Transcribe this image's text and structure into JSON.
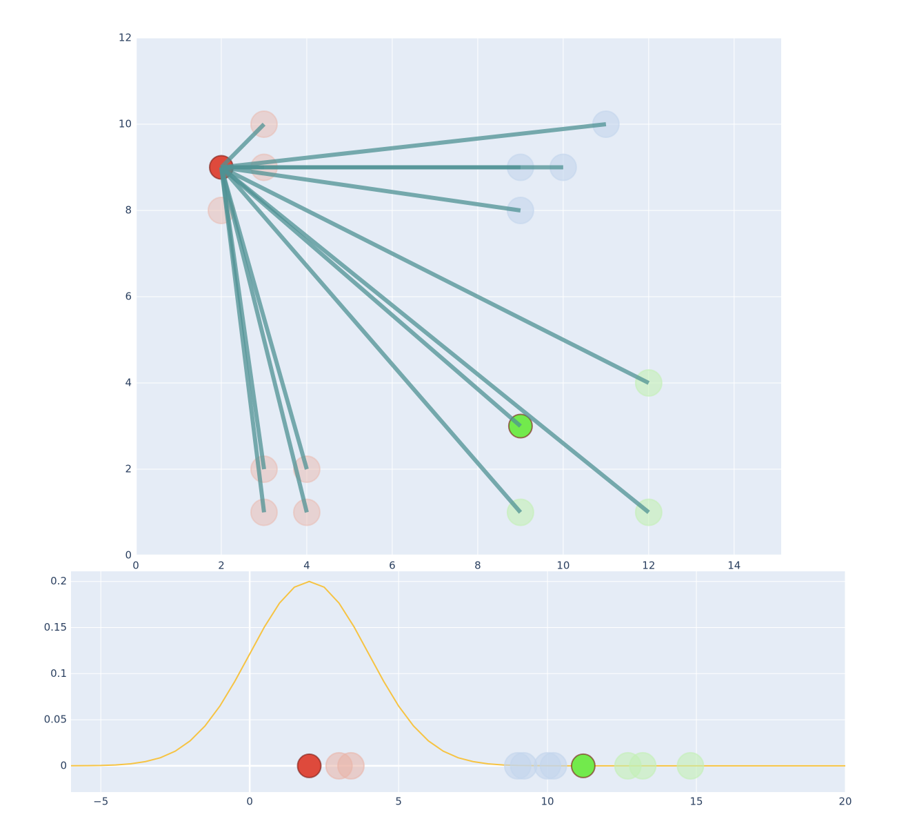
{
  "chart_data": [
    {
      "type": "scatter",
      "xlim": [
        0,
        15.1
      ],
      "ylim": [
        0,
        12
      ],
      "xticks": [
        0,
        2,
        4,
        6,
        8,
        10,
        12,
        14
      ],
      "yticks": [
        0,
        2,
        4,
        6,
        8,
        10,
        12
      ],
      "grid": true,
      "segments": {
        "origin": {
          "x": 2,
          "y": 9
        },
        "color": "#4f9294",
        "x": [
          3,
          3,
          11,
          9,
          10,
          9,
          12,
          9,
          12,
          9,
          3,
          4,
          3,
          4
        ],
        "y": [
          10,
          9,
          10,
          9,
          9,
          8,
          4,
          3,
          1,
          1,
          2,
          2,
          1,
          1
        ]
      },
      "series": [
        {
          "mode": "markers",
          "x": [
            3,
            3,
            2,
            3,
            4,
            3,
            4
          ],
          "y": [
            10,
            9,
            8,
            2,
            2,
            1,
            1
          ],
          "color": "#e9b3a6",
          "opacity": 0.45
        },
        {
          "mode": "markers",
          "x": [
            11,
            9,
            10,
            9
          ],
          "y": [
            10,
            9,
            9,
            8
          ],
          "color": "#c3d5ec",
          "opacity": 0.6
        },
        {
          "mode": "markers",
          "x": [
            12,
            9,
            12
          ],
          "y": [
            4,
            1,
            1
          ],
          "color": "#c3f0b5",
          "opacity": 0.6
        },
        {
          "mode": "markers",
          "x": [
            2
          ],
          "y": [
            9
          ],
          "color": "#de4a3c",
          "opacity": 1
        },
        {
          "mode": "markers",
          "x": [
            9
          ],
          "y": [
            3
          ],
          "color": "#72ea4c",
          "opacity": 1
        }
      ]
    },
    {
      "type": "line",
      "xlim": [
        -6,
        20
      ],
      "ylim": [
        -0.0285,
        0.211
      ],
      "xticks": [
        {
          "value": -5,
          "label": "−5"
        },
        0,
        5,
        10,
        15,
        20
      ],
      "yticks": [
        0,
        0.05,
        0.1,
        0.15,
        0.2
      ],
      "grid": true,
      "series": [
        {
          "mode": "line",
          "color": "#f6c342",
          "opacity": 1,
          "x": [
            -6,
            -5.5,
            -5,
            -4.5,
            -4,
            -3.5,
            -3,
            -2.5,
            -2,
            -1.5,
            -1,
            -0.5,
            0,
            0.5,
            1,
            1.5,
            2,
            2.5,
            3,
            3.5,
            4,
            4.5,
            5,
            5.5,
            6,
            6.5,
            7,
            7.5,
            8,
            8.5,
            9,
            9.5,
            10,
            10.5,
            11,
            11.5,
            12,
            12.5,
            13,
            13.5,
            14,
            14.5,
            15,
            15.5,
            16,
            16.5,
            17,
            17.5,
            18,
            18.5,
            19,
            19.5,
            20
          ],
          "y": [
            0.0001,
            0.0002,
            0.0004,
            0.001,
            0.0022,
            0.0046,
            0.0088,
            0.0159,
            0.0271,
            0.0433,
            0.0649,
            0.0916,
            0.1213,
            0.151,
            0.1765,
            0.1938,
            0.2,
            0.1938,
            0.1765,
            0.151,
            0.1213,
            0.0916,
            0.0649,
            0.0433,
            0.0271,
            0.0159,
            0.0088,
            0.0046,
            0.0022,
            0.001,
            0.0004,
            0.0002,
            0.0001,
            0,
            0,
            0,
            0,
            0,
            0,
            0,
            0,
            0,
            0,
            0,
            0,
            0,
            0,
            0,
            0,
            0,
            0,
            0,
            0
          ]
        },
        {
          "mode": "markers",
          "x": [
            3.0,
            3.4
          ],
          "y": [
            0,
            0
          ],
          "color": "#e9b3a6",
          "opacity": 0.55
        },
        {
          "mode": "markers",
          "x": [
            9.0,
            9.2,
            10.0,
            10.2
          ],
          "y": [
            0,
            0,
            0,
            0
          ],
          "color": "#c3d5ec",
          "opacity": 0.6
        },
        {
          "mode": "markers",
          "x": [
            12.7,
            13.2,
            14.8
          ],
          "y": [
            0,
            0,
            0
          ],
          "color": "#c3f0b5",
          "opacity": 0.6
        },
        {
          "mode": "markers",
          "x": [
            2.0
          ],
          "y": [
            0
          ],
          "color": "#de4a3c",
          "opacity": 1
        },
        {
          "mode": "markers",
          "x": [
            11.2
          ],
          "y": [
            0
          ],
          "color": "#72ea4c",
          "opacity": 1
        }
      ]
    }
  ]
}
